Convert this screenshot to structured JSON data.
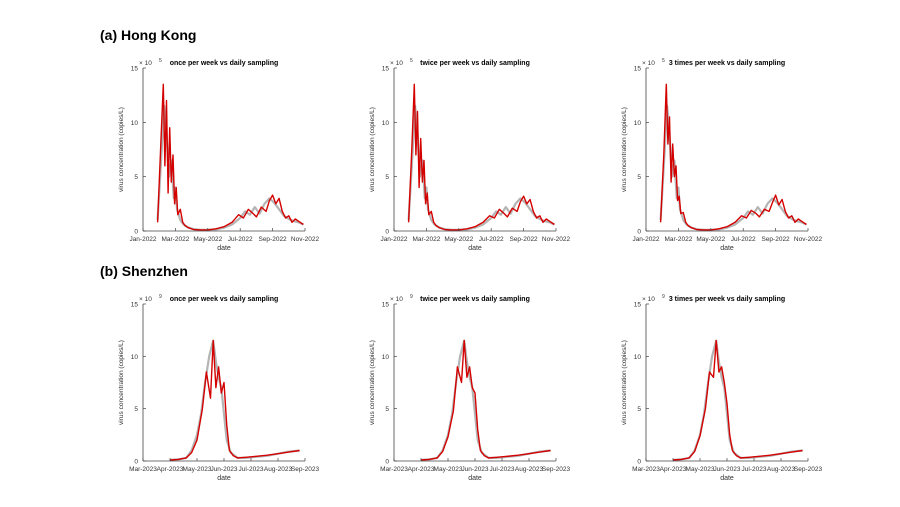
{
  "sections": [
    {
      "title": "(a) Hong Kong"
    },
    {
      "title": "(b) Shenzhen"
    }
  ],
  "colors": {
    "red": "#d40000",
    "grey": "#b4b4b4",
    "axis": "#444444"
  },
  "chart_data": [
    {
      "type": "line",
      "region": "Hong Kong",
      "title": "once per week vs daily sampling",
      "xlabel": "date",
      "ylabel": "virus concentration (copies/L)",
      "exponent_label": "× 10",
      "exponent_power": "5",
      "xlim": [
        0,
        10
      ],
      "ylim": [
        0,
        15
      ],
      "yticks": [
        0,
        5,
        10,
        15
      ],
      "xticks": [
        0,
        2,
        4,
        6,
        8,
        10
      ],
      "xtick_labels": [
        "Jan-2022",
        "Mar-2022",
        "May-2022",
        "Jul-2022",
        "Sep-2022",
        "Nov-2022"
      ],
      "series": [
        {
          "name": "daily sampling",
          "color": "grey",
          "x": [
            0.9,
            1.1,
            1.3,
            1.45,
            1.6,
            1.75,
            1.9,
            2.0,
            2.1,
            2.3,
            2.5,
            2.8,
            3.2,
            3.6,
            4.0,
            4.5,
            5.0,
            5.5,
            6.0,
            6.3,
            6.6,
            6.9,
            7.2,
            7.5,
            7.8,
            8.1,
            8.4,
            8.7,
            9.0,
            9.3,
            9.6,
            9.9
          ],
          "y": [
            1.0,
            6.0,
            11.5,
            9.0,
            5.0,
            6.5,
            3.0,
            4.0,
            2.0,
            1.0,
            0.6,
            0.3,
            0.15,
            0.1,
            0.1,
            0.15,
            0.3,
            0.6,
            1.2,
            1.8,
            1.5,
            2.2,
            1.6,
            2.5,
            3.0,
            2.6,
            2.0,
            1.4,
            1.1,
            0.9,
            0.8,
            0.6
          ]
        },
        {
          "name": "once per week",
          "color": "red",
          "x": [
            0.9,
            1.1,
            1.25,
            1.35,
            1.45,
            1.55,
            1.65,
            1.75,
            1.85,
            1.95,
            2.05,
            2.15,
            2.3,
            2.45,
            2.6,
            2.8,
            3.1,
            3.5,
            4.0,
            4.5,
            5.0,
            5.5,
            5.9,
            6.2,
            6.5,
            6.8,
            7.0,
            7.3,
            7.6,
            7.8,
            8.0,
            8.2,
            8.4,
            8.6,
            8.8,
            9.0,
            9.2,
            9.4,
            9.6,
            9.9
          ],
          "y": [
            0.8,
            8.0,
            13.5,
            6.0,
            12.0,
            3.5,
            9.5,
            4.5,
            7.0,
            2.5,
            4.0,
            1.5,
            2.0,
            0.8,
            0.5,
            0.3,
            0.15,
            0.1,
            0.1,
            0.2,
            0.4,
            0.8,
            1.5,
            1.2,
            2.0,
            1.6,
            1.3,
            2.2,
            1.8,
            2.8,
            3.3,
            2.5,
            3.0,
            1.8,
            1.2,
            1.4,
            0.8,
            1.1,
            0.9,
            0.6
          ]
        }
      ]
    },
    {
      "type": "line",
      "region": "Hong Kong",
      "title": "twice per week vs daily sampling",
      "xlabel": "date",
      "ylabel": "virus concentration (copies/L)",
      "exponent_label": "× 10",
      "exponent_power": "5",
      "xlim": [
        0,
        10
      ],
      "ylim": [
        0,
        15
      ],
      "yticks": [
        0,
        5,
        10,
        15
      ],
      "xticks": [
        0,
        2,
        4,
        6,
        8,
        10
      ],
      "xtick_labels": [
        "Jan-2022",
        "Mar-2022",
        "May-2022",
        "Jul-2022",
        "Sep-2022",
        "Nov-2022"
      ],
      "series": [
        {
          "name": "daily sampling",
          "color": "grey",
          "x": [
            0.9,
            1.1,
            1.3,
            1.45,
            1.6,
            1.75,
            1.9,
            2.0,
            2.1,
            2.3,
            2.5,
            2.8,
            3.2,
            3.6,
            4.0,
            4.5,
            5.0,
            5.5,
            6.0,
            6.3,
            6.6,
            6.9,
            7.2,
            7.5,
            7.8,
            8.1,
            8.4,
            8.7,
            9.0,
            9.3,
            9.6,
            9.9
          ],
          "y": [
            1.0,
            6.0,
            11.5,
            9.0,
            5.0,
            6.5,
            3.0,
            4.0,
            2.0,
            1.0,
            0.6,
            0.3,
            0.15,
            0.1,
            0.1,
            0.15,
            0.3,
            0.6,
            1.2,
            1.8,
            1.5,
            2.2,
            1.6,
            2.5,
            3.0,
            2.6,
            2.0,
            1.4,
            1.1,
            0.9,
            0.8,
            0.6
          ]
        },
        {
          "name": "twice per week",
          "color": "red",
          "x": [
            0.9,
            1.1,
            1.25,
            1.35,
            1.45,
            1.55,
            1.65,
            1.75,
            1.85,
            1.95,
            2.05,
            2.15,
            2.3,
            2.45,
            2.6,
            2.8,
            3.1,
            3.5,
            4.0,
            4.5,
            5.0,
            5.5,
            5.9,
            6.2,
            6.5,
            6.8,
            7.0,
            7.3,
            7.6,
            7.8,
            8.0,
            8.2,
            8.4,
            8.6,
            8.8,
            9.0,
            9.2,
            9.4,
            9.6,
            9.9
          ],
          "y": [
            0.8,
            7.5,
            13.5,
            7.0,
            11.0,
            4.0,
            8.5,
            4.5,
            6.5,
            2.5,
            3.5,
            1.5,
            1.8,
            0.8,
            0.5,
            0.3,
            0.15,
            0.1,
            0.1,
            0.2,
            0.4,
            0.8,
            1.4,
            1.2,
            2.0,
            1.6,
            1.3,
            2.1,
            1.8,
            2.7,
            3.2,
            2.5,
            2.9,
            1.8,
            1.2,
            1.4,
            0.8,
            1.1,
            0.9,
            0.6
          ]
        }
      ]
    },
    {
      "type": "line",
      "region": "Hong Kong",
      "title": "3 times per week vs daily sampling",
      "xlabel": "date",
      "ylabel": "virus concentration (copies/L)",
      "exponent_label": "× 10",
      "exponent_power": "5",
      "xlim": [
        0,
        10
      ],
      "ylim": [
        0,
        15
      ],
      "yticks": [
        0,
        5,
        10,
        15
      ],
      "xticks": [
        0,
        2,
        4,
        6,
        8,
        10
      ],
      "xtick_labels": [
        "Jan-2022",
        "Mar-2022",
        "May-2022",
        "Jul-2022",
        "Sep-2022",
        "Nov-2022"
      ],
      "series": [
        {
          "name": "daily sampling",
          "color": "grey",
          "x": [
            0.9,
            1.1,
            1.3,
            1.45,
            1.6,
            1.75,
            1.9,
            2.0,
            2.1,
            2.3,
            2.5,
            2.8,
            3.2,
            3.6,
            4.0,
            4.5,
            5.0,
            5.5,
            6.0,
            6.3,
            6.6,
            6.9,
            7.2,
            7.5,
            7.8,
            8.1,
            8.4,
            8.7,
            9.0,
            9.3,
            9.6,
            9.9
          ],
          "y": [
            1.0,
            6.0,
            11.5,
            9.0,
            5.0,
            6.5,
            3.0,
            4.0,
            2.0,
            1.0,
            0.6,
            0.3,
            0.15,
            0.1,
            0.1,
            0.15,
            0.3,
            0.6,
            1.2,
            1.8,
            1.5,
            2.2,
            1.6,
            2.5,
            3.0,
            2.6,
            2.0,
            1.4,
            1.1,
            0.9,
            0.8,
            0.6
          ]
        },
        {
          "name": "3 times per week",
          "color": "red",
          "x": [
            0.9,
            1.1,
            1.25,
            1.35,
            1.45,
            1.55,
            1.65,
            1.75,
            1.85,
            1.95,
            2.05,
            2.15,
            2.3,
            2.45,
            2.6,
            2.8,
            3.1,
            3.5,
            4.0,
            4.5,
            5.0,
            5.5,
            5.9,
            6.2,
            6.5,
            6.8,
            7.0,
            7.3,
            7.6,
            7.8,
            8.0,
            8.2,
            8.4,
            8.6,
            8.8,
            9.0,
            9.2,
            9.4,
            9.6,
            9.9
          ],
          "y": [
            0.8,
            7.0,
            13.5,
            8.0,
            10.5,
            4.5,
            8.0,
            5.0,
            6.0,
            2.8,
            3.2,
            1.6,
            1.7,
            0.8,
            0.5,
            0.3,
            0.15,
            0.1,
            0.1,
            0.2,
            0.4,
            0.8,
            1.4,
            1.2,
            1.9,
            1.6,
            1.3,
            2.0,
            1.8,
            2.6,
            3.3,
            2.4,
            2.9,
            1.8,
            1.2,
            1.4,
            0.8,
            1.1,
            0.9,
            0.6
          ]
        }
      ]
    },
    {
      "type": "line",
      "region": "Shenzhen",
      "title": "once per week vs daily sampling",
      "xlabel": "date",
      "ylabel": "virus concentration (copies/L)",
      "exponent_label": "× 10",
      "exponent_power": "9",
      "xlim": [
        0,
        6
      ],
      "ylim": [
        0,
        15
      ],
      "yticks": [
        0,
        5,
        10,
        15
      ],
      "xticks": [
        0,
        1,
        2,
        3,
        4,
        5,
        6
      ],
      "xtick_labels": [
        "Mar-2023",
        "Apr-2023",
        "May-2023",
        "Jun-2023",
        "Jul-2023",
        "Aug-2023",
        "Sep-2023"
      ],
      "series": [
        {
          "name": "daily sampling",
          "color": "grey",
          "x": [
            1.0,
            1.3,
            1.6,
            1.8,
            2.0,
            2.15,
            2.3,
            2.45,
            2.6,
            2.7,
            2.8,
            2.9,
            3.0,
            3.1,
            3.25,
            3.5,
            3.8,
            4.2,
            4.6,
            5.0,
            5.4,
            5.8
          ],
          "y": [
            0.1,
            0.15,
            0.3,
            1.0,
            2.5,
            4.5,
            7.5,
            10.0,
            11.5,
            9.5,
            8.0,
            7.0,
            4.5,
            2.0,
            0.8,
            0.3,
            0.3,
            0.4,
            0.5,
            0.7,
            0.9,
            1.0
          ]
        },
        {
          "name": "once per week",
          "color": "red",
          "x": [
            1.0,
            1.3,
            1.6,
            1.8,
            2.0,
            2.2,
            2.35,
            2.5,
            2.6,
            2.7,
            2.8,
            2.9,
            3.0,
            3.1,
            3.2,
            3.35,
            3.5,
            3.8,
            4.2,
            4.6,
            5.0,
            5.4,
            5.8
          ],
          "y": [
            0.1,
            0.15,
            0.3,
            0.8,
            2.0,
            5.0,
            8.5,
            6.0,
            11.5,
            7.0,
            9.0,
            6.5,
            7.5,
            3.5,
            1.0,
            0.5,
            0.3,
            0.35,
            0.45,
            0.55,
            0.7,
            0.85,
            1.0
          ]
        }
      ]
    },
    {
      "type": "line",
      "region": "Shenzhen",
      "title": "twice per week vs daily sampling",
      "xlabel": "date",
      "ylabel": "virus concentration (copies/L)",
      "exponent_label": "× 10",
      "exponent_power": "9",
      "xlim": [
        0,
        6
      ],
      "ylim": [
        0,
        15
      ],
      "yticks": [
        0,
        5,
        10,
        15
      ],
      "xticks": [
        0,
        1,
        2,
        3,
        4,
        5,
        6
      ],
      "xtick_labels": [
        "Mar-2023",
        "Apr-2023",
        "May-2023",
        "Jun-2023",
        "Jul-2023",
        "Aug-2023",
        "Sep-2023"
      ],
      "series": [
        {
          "name": "daily sampling",
          "color": "grey",
          "x": [
            1.0,
            1.3,
            1.6,
            1.8,
            2.0,
            2.15,
            2.3,
            2.45,
            2.6,
            2.7,
            2.8,
            2.9,
            3.0,
            3.1,
            3.25,
            3.5,
            3.8,
            4.2,
            4.6,
            5.0,
            5.4,
            5.8
          ],
          "y": [
            0.1,
            0.15,
            0.3,
            1.0,
            2.5,
            4.5,
            7.5,
            10.0,
            11.5,
            9.5,
            8.0,
            7.0,
            4.5,
            2.0,
            0.8,
            0.3,
            0.3,
            0.4,
            0.5,
            0.7,
            0.9,
            1.0
          ]
        },
        {
          "name": "twice per week",
          "color": "red",
          "x": [
            1.0,
            1.3,
            1.6,
            1.8,
            2.0,
            2.2,
            2.35,
            2.5,
            2.6,
            2.7,
            2.8,
            2.9,
            3.0,
            3.1,
            3.2,
            3.35,
            3.5,
            3.8,
            4.2,
            4.6,
            5.0,
            5.4,
            5.8
          ],
          "y": [
            0.1,
            0.15,
            0.3,
            0.9,
            2.3,
            4.8,
            9.0,
            7.5,
            11.5,
            8.0,
            9.0,
            7.0,
            6.5,
            3.0,
            1.0,
            0.5,
            0.3,
            0.35,
            0.45,
            0.55,
            0.7,
            0.85,
            1.0
          ]
        }
      ]
    },
    {
      "type": "line",
      "region": "Shenzhen",
      "title": "3 times per week vs daily sampling",
      "xlabel": "date",
      "ylabel": "virus concentration (copies/L)",
      "exponent_label": "× 10",
      "exponent_power": "9",
      "xlim": [
        0,
        6
      ],
      "ylim": [
        0,
        15
      ],
      "yticks": [
        0,
        5,
        10,
        15
      ],
      "xticks": [
        0,
        1,
        2,
        3,
        4,
        5,
        6
      ],
      "xtick_labels": [
        "Mar-2023",
        "Apr-2023",
        "May-2023",
        "Jun-2023",
        "Jul-2023",
        "Aug-2023",
        "Sep-2023"
      ],
      "series": [
        {
          "name": "daily sampling",
          "color": "grey",
          "x": [
            1.0,
            1.3,
            1.6,
            1.8,
            2.0,
            2.15,
            2.3,
            2.45,
            2.6,
            2.7,
            2.8,
            2.9,
            3.0,
            3.1,
            3.25,
            3.5,
            3.8,
            4.2,
            4.6,
            5.0,
            5.4,
            5.8
          ],
          "y": [
            0.1,
            0.15,
            0.3,
            1.0,
            2.5,
            4.5,
            7.5,
            10.0,
            11.5,
            9.5,
            8.0,
            7.0,
            4.5,
            2.0,
            0.8,
            0.3,
            0.3,
            0.4,
            0.5,
            0.7,
            0.9,
            1.0
          ]
        },
        {
          "name": "3 times per week",
          "color": "red",
          "x": [
            1.0,
            1.3,
            1.6,
            1.8,
            2.0,
            2.2,
            2.35,
            2.5,
            2.6,
            2.7,
            2.8,
            2.9,
            3.0,
            3.1,
            3.2,
            3.35,
            3.5,
            3.8,
            4.2,
            4.6,
            5.0,
            5.4,
            5.8
          ],
          "y": [
            0.1,
            0.15,
            0.3,
            0.9,
            2.4,
            5.0,
            8.5,
            8.0,
            11.5,
            8.5,
            9.0,
            7.5,
            5.5,
            2.5,
            1.0,
            0.5,
            0.3,
            0.35,
            0.45,
            0.55,
            0.7,
            0.85,
            1.0
          ]
        }
      ]
    }
  ]
}
